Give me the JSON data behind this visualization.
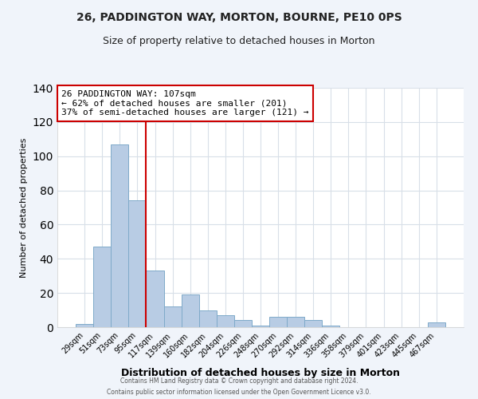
{
  "title1": "26, PADDINGTON WAY, MORTON, BOURNE, PE10 0PS",
  "title2": "Size of property relative to detached houses in Morton",
  "xlabel": "Distribution of detached houses by size in Morton",
  "ylabel": "Number of detached properties",
  "categories": [
    "29sqm",
    "51sqm",
    "73sqm",
    "95sqm",
    "117sqm",
    "139sqm",
    "160sqm",
    "182sqm",
    "204sqm",
    "226sqm",
    "248sqm",
    "270sqm",
    "292sqm",
    "314sqm",
    "336sqm",
    "358sqm",
    "379sqm",
    "401sqm",
    "423sqm",
    "445sqm",
    "467sqm"
  ],
  "values": [
    2,
    47,
    107,
    74,
    33,
    12,
    19,
    10,
    7,
    4,
    1,
    6,
    6,
    4,
    1,
    0,
    0,
    0,
    0,
    0,
    3
  ],
  "bar_color": "#b8cce4",
  "bar_edge_color": "#7faac9",
  "annotation_box_color": "#ffffff",
  "annotation_border_color": "#cc0000",
  "vline_color": "#cc0000",
  "vline_x_index": 3.5,
  "annotation_line1": "26 PADDINGTON WAY: 107sqm",
  "annotation_line2": "← 62% of detached houses are smaller (201)",
  "annotation_line3": "37% of semi-detached houses are larger (121) →",
  "ylim": [
    0,
    140
  ],
  "yticks": [
    0,
    20,
    40,
    60,
    80,
    100,
    120,
    140
  ],
  "footer1": "Contains HM Land Registry data © Crown copyright and database right 2024.",
  "footer2": "Contains public sector information licensed under the Open Government Licence v3.0.",
  "plot_bg_color": "#ffffff",
  "fig_bg_color": "#f0f4fa",
  "grid_color": "#d8dfe8",
  "title_fontsize": 10,
  "subtitle_fontsize": 9
}
